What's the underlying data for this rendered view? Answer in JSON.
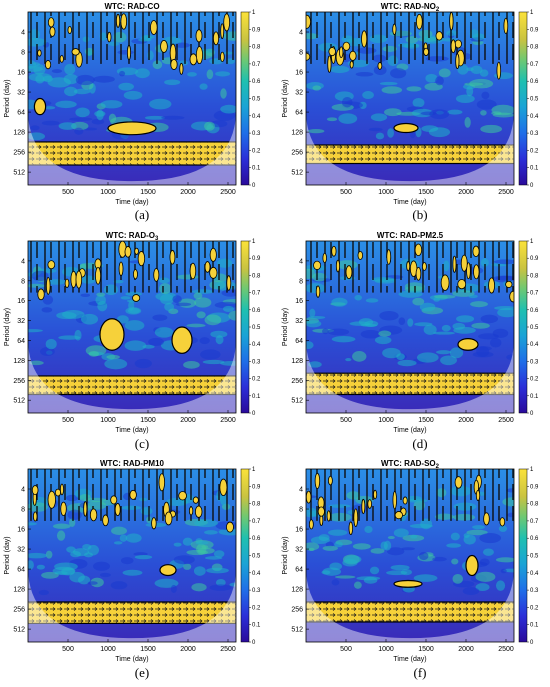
{
  "figure": {
    "panels": [
      {
        "title_prefix": "WTC: RAD-CO",
        "title_sub": "",
        "title_suffix": "",
        "caption": "(a)"
      },
      {
        "title_prefix": "WTC: RAD-NO",
        "title_sub": "2",
        "title_suffix": "",
        "caption": "(b)"
      },
      {
        "title_prefix": "WTC: RAD-O",
        "title_sub": "3",
        "title_suffix": "",
        "caption": "(c)"
      },
      {
        "title_prefix": "WTC: RAD-PM2.5",
        "title_sub": "",
        "title_suffix": "",
        "caption": "(d)"
      },
      {
        "title_prefix": "WTC: RAD-PM10",
        "title_sub": "",
        "title_suffix": "",
        "caption": "(e)"
      },
      {
        "title_prefix": "WTC: RAD-SO",
        "title_sub": "2",
        "title_suffix": "",
        "caption": "(f)"
      }
    ],
    "colors": {
      "low": "#2a1ab8",
      "mid": "#1fb0c8",
      "high": "#f6d13a",
      "significant_contour": "#000000",
      "cone_shade": "#ffffff"
    }
  },
  "chart_data": [
    {
      "type": "heatmap",
      "title": "WTC: RAD-CO",
      "xlabel": "Time (day)",
      "ylabel": "Period (day)",
      "x_ticks": [
        500,
        1000,
        1500,
        2000,
        2500
      ],
      "y_ticks": [
        4,
        8,
        16,
        32,
        64,
        128,
        256,
        512
      ],
      "xlim": [
        0,
        2600
      ],
      "ylim": [
        2,
        800
      ],
      "y_scale": "log2",
      "colorbar": {
        "min": 0,
        "max": 1,
        "ticks": [
          0,
          0.1,
          0.2,
          0.3,
          0.4,
          0.5,
          0.6,
          0.7,
          0.8,
          0.9,
          1
        ]
      },
      "features": [
        {
          "label": "high coherence band",
          "period_range": [
            180,
            400
          ],
          "time_range": [
            0,
            2600
          ],
          "coherence": 0.9
        },
        {
          "label": "high coherence patch",
          "period_range": [
            90,
            140
          ],
          "time_range": [
            1000,
            1600
          ],
          "coherence": 0.9
        },
        {
          "label": "high coherence patch",
          "period_range": [
            40,
            70
          ],
          "time_range": [
            80,
            220
          ],
          "coherence": 0.9
        }
      ]
    },
    {
      "type": "heatmap",
      "title": "WTC: RAD-NO2",
      "xlabel": "Time (day)",
      "ylabel": "Period (day)",
      "x_ticks": [
        500,
        1000,
        1500,
        2000,
        2500
      ],
      "y_ticks": [
        4,
        8,
        16,
        32,
        64,
        128,
        256,
        512
      ],
      "xlim": [
        0,
        2600
      ],
      "ylim": [
        2,
        800
      ],
      "y_scale": "log2",
      "colorbar": {
        "min": 0,
        "max": 1,
        "ticks": [
          0,
          0.1,
          0.2,
          0.3,
          0.4,
          0.5,
          0.6,
          0.7,
          0.8,
          0.9,
          1
        ]
      },
      "features": [
        {
          "label": "high coherence band",
          "period_range": [
            200,
            380
          ],
          "time_range": [
            0,
            2600
          ],
          "coherence": 0.9
        },
        {
          "label": "high coherence patch",
          "period_range": [
            95,
            130
          ],
          "time_range": [
            1100,
            1400
          ],
          "coherence": 0.9
        }
      ]
    },
    {
      "type": "heatmap",
      "title": "WTC: RAD-O3",
      "xlabel": "Time (day)",
      "ylabel": "Period (day)",
      "x_ticks": [
        500,
        1000,
        1500,
        2000,
        2500
      ],
      "y_ticks": [
        4,
        8,
        16,
        32,
        64,
        128,
        256,
        512
      ],
      "xlim": [
        0,
        2600
      ],
      "ylim": [
        2,
        800
      ],
      "y_scale": "log2",
      "colorbar": {
        "min": 0,
        "max": 1,
        "ticks": [
          0,
          0.1,
          0.2,
          0.3,
          0.4,
          0.5,
          0.6,
          0.7,
          0.8,
          0.9,
          1
        ]
      },
      "features": [
        {
          "label": "high coherence band",
          "period_range": [
            220,
            420
          ],
          "time_range": [
            0,
            2600
          ],
          "coherence": 0.9
        },
        {
          "label": "high coherence patch",
          "period_range": [
            30,
            90
          ],
          "time_range": [
            900,
            1200
          ],
          "coherence": 0.9
        },
        {
          "label": "high coherence patch",
          "period_range": [
            40,
            100
          ],
          "time_range": [
            1800,
            2050
          ],
          "coherence": 0.9
        }
      ]
    },
    {
      "type": "heatmap",
      "title": "WTC: RAD-PM2.5",
      "xlabel": "Time (day)",
      "ylabel": "Period (day)",
      "x_ticks": [
        500,
        1000,
        1500,
        2000,
        2500
      ],
      "y_ticks": [
        4,
        8,
        16,
        32,
        64,
        128,
        256,
        512
      ],
      "xlim": [
        0,
        2600
      ],
      "ylim": [
        2,
        800
      ],
      "y_scale": "log2",
      "colorbar": {
        "min": 0,
        "max": 1,
        "ticks": [
          0,
          0.1,
          0.2,
          0.3,
          0.4,
          0.5,
          0.6,
          0.7,
          0.8,
          0.9,
          1
        ]
      },
      "features": [
        {
          "label": "high coherence band",
          "period_range": [
            200,
            420
          ],
          "time_range": [
            0,
            2600
          ],
          "coherence": 0.9
        },
        {
          "label": "high coherence patch",
          "period_range": [
            60,
            90
          ],
          "time_range": [
            1900,
            2150
          ],
          "coherence": 0.9
        }
      ]
    },
    {
      "type": "heatmap",
      "title": "WTC: RAD-PM10",
      "xlabel": "Time (day)",
      "ylabel": "Period (day)",
      "x_ticks": [
        500,
        1000,
        1500,
        2000,
        2500
      ],
      "y_ticks": [
        4,
        8,
        16,
        32,
        64,
        128,
        256,
        512
      ],
      "xlim": [
        0,
        2600
      ],
      "ylim": [
        2,
        800
      ],
      "y_scale": "log2",
      "colorbar": {
        "min": 0,
        "max": 1,
        "ticks": [
          0,
          0.1,
          0.2,
          0.3,
          0.4,
          0.5,
          0.6,
          0.7,
          0.8,
          0.9,
          1
        ]
      },
      "features": [
        {
          "label": "high coherence band",
          "period_range": [
            200,
            420
          ],
          "time_range": [
            0,
            2600
          ],
          "coherence": 0.9
        },
        {
          "label": "high coherence patch",
          "period_range": [
            55,
            80
          ],
          "time_range": [
            1650,
            1850
          ],
          "coherence": 0.9
        }
      ]
    },
    {
      "type": "heatmap",
      "title": "WTC: RAD-SO2",
      "xlabel": "Time (day)",
      "ylabel": "Period (day)",
      "x_ticks": [
        500,
        1000,
        1500,
        2000,
        2500
      ],
      "y_ticks": [
        4,
        8,
        16,
        32,
        64,
        128,
        256,
        512
      ],
      "xlim": [
        0,
        2600
      ],
      "ylim": [
        2,
        800
      ],
      "y_scale": "log2",
      "colorbar": {
        "min": 0,
        "max": 1,
        "ticks": [
          0,
          0.1,
          0.2,
          0.3,
          0.4,
          0.5,
          0.6,
          0.7,
          0.8,
          0.9,
          1
        ]
      },
      "features": [
        {
          "label": "high coherence band",
          "period_range": [
            200,
            400
          ],
          "time_range": [
            0,
            2600
          ],
          "coherence": 0.9
        },
        {
          "label": "high coherence patch",
          "period_range": [
            95,
            120
          ],
          "time_range": [
            1100,
            1450
          ],
          "coherence": 0.9
        },
        {
          "label": "high coherence patch",
          "period_range": [
            40,
            80
          ],
          "time_range": [
            2000,
            2150
          ],
          "coherence": 0.9
        }
      ]
    }
  ]
}
